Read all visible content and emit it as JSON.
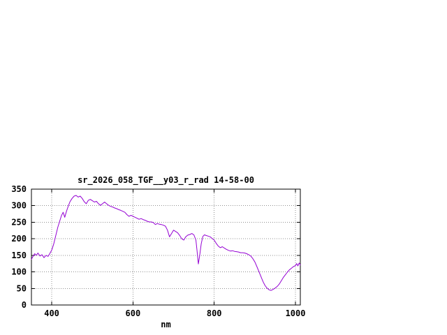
{
  "window": {
    "background": "#ffffff"
  },
  "chart_data": {
    "type": "line",
    "title": "sr_2026_058_TGF__y03_r_rad 14-58-00",
    "xlabel": "nm",
    "ylabel": "",
    "xlim": [
      350,
      1012
    ],
    "ylim": [
      0,
      350
    ],
    "xticks": [
      400,
      600,
      800,
      1000
    ],
    "yticks": [
      0,
      50,
      100,
      150,
      200,
      250,
      300,
      350
    ],
    "grid": true,
    "legend": "none",
    "colors": {
      "line": "#9400d3",
      "grid": "#909090",
      "border": "#000000",
      "text": "#000000"
    },
    "series": [
      {
        "name": "sr_2026_058_TGF__y03_r_rad",
        "points": [
          [
            350,
            138
          ],
          [
            355,
            149
          ],
          [
            358,
            155
          ],
          [
            362,
            150
          ],
          [
            366,
            157
          ],
          [
            371,
            148
          ],
          [
            376,
            152
          ],
          [
            381,
            143
          ],
          [
            386,
            150
          ],
          [
            391,
            147
          ],
          [
            395,
            155
          ],
          [
            400,
            166
          ],
          [
            405,
            185
          ],
          [
            410,
            210
          ],
          [
            415,
            235
          ],
          [
            420,
            255
          ],
          [
            424,
            270
          ],
          [
            428,
            280
          ],
          [
            432,
            265
          ],
          [
            436,
            282
          ],
          [
            440,
            296
          ],
          [
            445,
            312
          ],
          [
            450,
            322
          ],
          [
            455,
            329
          ],
          [
            460,
            331
          ],
          [
            465,
            326
          ],
          [
            470,
            329
          ],
          [
            475,
            322
          ],
          [
            480,
            312
          ],
          [
            485,
            306
          ],
          [
            490,
            316
          ],
          [
            495,
            319
          ],
          [
            500,
            315
          ],
          [
            505,
            311
          ],
          [
            510,
            313
          ],
          [
            515,
            306
          ],
          [
            520,
            301
          ],
          [
            525,
            306
          ],
          [
            530,
            311
          ],
          [
            535,
            306
          ],
          [
            540,
            301
          ],
          [
            545,
            298
          ],
          [
            550,
            296
          ],
          [
            555,
            293
          ],
          [
            560,
            291
          ],
          [
            565,
            288
          ],
          [
            570,
            286
          ],
          [
            575,
            283
          ],
          [
            580,
            280
          ],
          [
            585,
            273
          ],
          [
            590,
            268
          ],
          [
            595,
            271
          ],
          [
            600,
            268
          ],
          [
            605,
            265
          ],
          [
            610,
            262
          ],
          [
            615,
            259
          ],
          [
            620,
            261
          ],
          [
            625,
            258
          ],
          [
            630,
            256
          ],
          [
            635,
            253
          ],
          [
            640,
            251
          ],
          [
            645,
            251
          ],
          [
            650,
            249
          ],
          [
            655,
            243
          ],
          [
            660,
            246
          ],
          [
            665,
            244
          ],
          [
            670,
            243
          ],
          [
            675,
            241
          ],
          [
            680,
            238
          ],
          [
            685,
            226
          ],
          [
            690,
            206
          ],
          [
            695,
            216
          ],
          [
            700,
            226
          ],
          [
            705,
            222
          ],
          [
            710,
            218
          ],
          [
            715,
            210
          ],
          [
            720,
            200
          ],
          [
            725,
            196
          ],
          [
            730,
            206
          ],
          [
            735,
            211
          ],
          [
            740,
            213
          ],
          [
            745,
            216
          ],
          [
            750,
            212
          ],
          [
            755,
            196
          ],
          [
            758,
            160
          ],
          [
            761,
            124
          ],
          [
            764,
            148
          ],
          [
            768,
            185
          ],
          [
            772,
            207
          ],
          [
            776,
            212
          ],
          [
            780,
            210
          ],
          [
            785,
            208
          ],
          [
            790,
            206
          ],
          [
            795,
            201
          ],
          [
            800,
            196
          ],
          [
            805,
            186
          ],
          [
            810,
            178
          ],
          [
            815,
            173
          ],
          [
            820,
            176
          ],
          [
            825,
            172
          ],
          [
            830,
            168
          ],
          [
            835,
            165
          ],
          [
            840,
            163
          ],
          [
            845,
            164
          ],
          [
            850,
            162
          ],
          [
            855,
            161
          ],
          [
            860,
            160
          ],
          [
            865,
            158
          ],
          [
            870,
            158
          ],
          [
            875,
            157
          ],
          [
            880,
            155
          ],
          [
            885,
            152
          ],
          [
            890,
            148
          ],
          [
            895,
            140
          ],
          [
            900,
            130
          ],
          [
            905,
            116
          ],
          [
            910,
            101
          ],
          [
            915,
            86
          ],
          [
            920,
            71
          ],
          [
            925,
            59
          ],
          [
            930,
            51
          ],
          [
            935,
            46
          ],
          [
            940,
            44
          ],
          [
            945,
            47
          ],
          [
            950,
            51
          ],
          [
            955,
            56
          ],
          [
            960,
            63
          ],
          [
            965,
            73
          ],
          [
            970,
            83
          ],
          [
            975,
            91
          ],
          [
            980,
            99
          ],
          [
            985,
            106
          ],
          [
            990,
            111
          ],
          [
            995,
            116
          ],
          [
            1000,
            119
          ],
          [
            1003,
            125
          ],
          [
            1006,
            118
          ],
          [
            1009,
            127
          ],
          [
            1012,
            121
          ]
        ]
      }
    ]
  }
}
